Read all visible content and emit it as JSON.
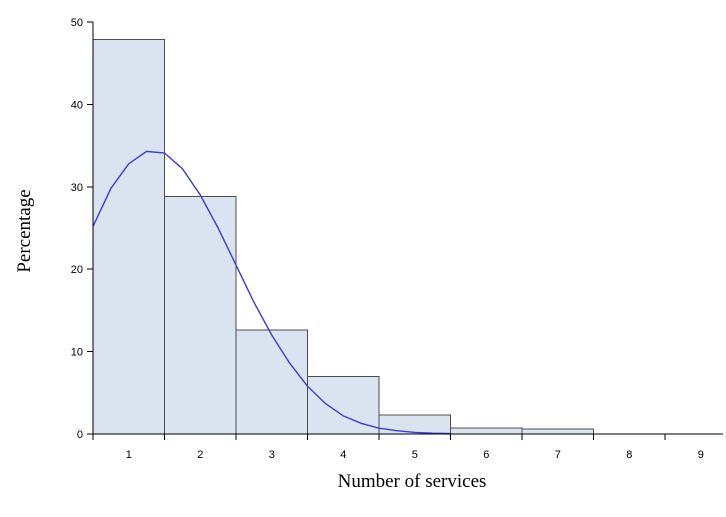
{
  "chart_data": {
    "type": "bar",
    "title": "",
    "xlabel": "Number of services",
    "ylabel": "Percentage",
    "categories": [
      "1",
      "2",
      "3",
      "4",
      "5",
      "6",
      "7",
      "8",
      "9"
    ],
    "values": [
      47.9,
      28.8,
      12.6,
      7.0,
      2.3,
      0.7,
      0.6,
      0.0,
      0.0
    ],
    "ylim": [
      0,
      50
    ],
    "yticks": [
      "0",
      "10",
      "20",
      "30",
      "40",
      "50"
    ],
    "grid": false,
    "legend": "none",
    "density_curve": {
      "x": [
        1.0,
        1.25,
        1.5,
        1.75,
        2.0,
        2.25,
        2.5,
        2.75,
        3.0,
        3.25,
        3.5,
        3.75,
        4.0,
        4.25,
        4.5,
        4.75,
        5.0,
        5.25,
        5.5,
        5.75,
        6.0
      ],
      "y": [
        25.2,
        29.8,
        32.8,
        34.3,
        34.1,
        32.2,
        29.0,
        25.0,
        20.5,
        16.0,
        12.0,
        8.6,
        5.8,
        3.7,
        2.2,
        1.3,
        0.7,
        0.4,
        0.2,
        0.1,
        0.05
      ]
    },
    "colors": {
      "bar_fill": "#dae4f1",
      "bar_stroke": "#4d4d4d",
      "curve": "#3b3bd8",
      "axis": "#000000"
    }
  }
}
